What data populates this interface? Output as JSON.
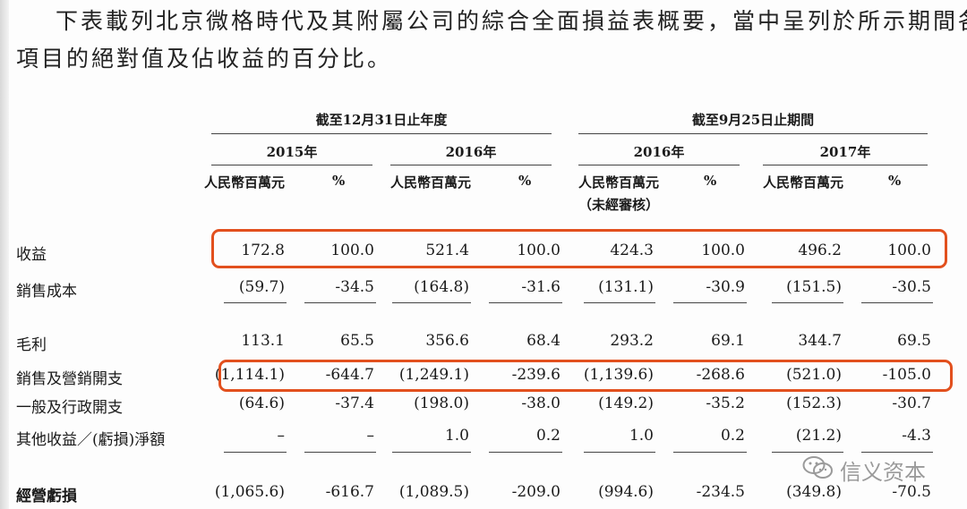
{
  "intro": {
    "line1": "下表載列北京微格時代及其附屬公司的綜合全面損益表概要，當中呈列於所示期間各",
    "line2": "項目的絕對值及佔收益的百分比。"
  },
  "table": {
    "group_headers": [
      "截至12月31日止年度",
      "截至9月25日止期間"
    ],
    "years": [
      "2015年",
      "2016年",
      "2016年",
      "2017年"
    ],
    "col_headers": [
      "人民幣百萬元",
      "%",
      "人民幣百萬元",
      "%",
      "人民幣百萬元",
      "%",
      "人民幣百萬元",
      "%"
    ],
    "unaudited_note": "（未經審核）",
    "rows": [
      {
        "label": "收益",
        "values": [
          "172.8",
          "100.0",
          "521.4",
          "100.0",
          "424.3",
          "100.0",
          "496.2",
          "100.0"
        ]
      },
      {
        "label": "銷售成本",
        "values": [
          "(59.7)",
          "-34.5",
          "(164.8)",
          "-31.6",
          "(131.1)",
          "-30.9",
          "(151.5)",
          "-30.5"
        ]
      },
      {
        "label": "毛利",
        "values": [
          "113.1",
          "65.5",
          "356.6",
          "68.4",
          "293.2",
          "69.1",
          "344.7",
          "69.5"
        ]
      },
      {
        "label": "銷售及營銷開支",
        "values": [
          "(1,114.1)",
          "-644.7",
          "(1,249.1)",
          "-239.6",
          "(1,139.6)",
          "-268.6",
          "(521.0)",
          "-105.0"
        ]
      },
      {
        "label": "一般及行政開支",
        "values": [
          "(64.6)",
          "-37.4",
          "(198.0)",
          "-38.0",
          "(149.2)",
          "-35.2",
          "(152.3)",
          "-30.7"
        ]
      },
      {
        "label": "其他收益／(虧損)淨額",
        "values": [
          "–",
          "–",
          "1.0",
          "0.2",
          "1.0",
          "0.2",
          "(21.2)",
          "-4.3"
        ]
      },
      {
        "label": "經營虧損",
        "values": [
          "(1,065.6)",
          "-616.7",
          "(1,089.5)",
          "-209.0",
          "(994.6)",
          "-234.5",
          "(349.8)",
          "-70.5"
        ]
      }
    ]
  },
  "watermark": {
    "text": "信义资本",
    "icon": "wechat-icon",
    "color": "#9a9a9a"
  },
  "highlight_color": "#e2501e"
}
